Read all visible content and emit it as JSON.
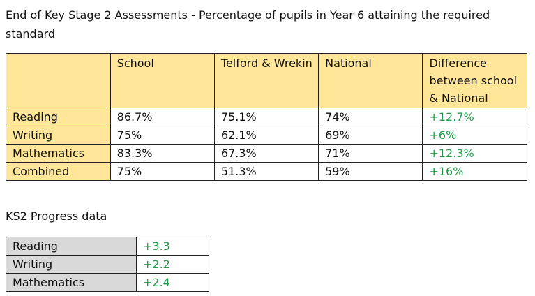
{
  "title": "End of Key Stage 2 Assessments - Percentage of pupils in Year 6 attaining the required standard",
  "attainment": {
    "headers": [
      "",
      "School",
      "Telford & Wrekin",
      "National",
      "Difference between school & National"
    ],
    "rows": [
      {
        "subject": "Reading",
        "school": "86.7%",
        "la": "75.1%",
        "national": "74%",
        "diff": "+12.7%"
      },
      {
        "subject": "Writing",
        "school": "75%",
        "la": "62.1%",
        "national": "69%",
        "diff": "+6%"
      },
      {
        "subject": "Mathematics",
        "school": "83.3%",
        "la": "67.3%",
        "national": "71%",
        "diff": "+12.3%"
      },
      {
        "subject": "Combined",
        "school": "75%",
        "la": "51.3%",
        "national": "59%",
        "diff": "+16%"
      }
    ]
  },
  "progress": {
    "title": "KS2 Progress data",
    "rows": [
      {
        "subject": "Reading",
        "score": "+3.3"
      },
      {
        "subject": "Writing",
        "score": "+2.2"
      },
      {
        "subject": "Mathematics",
        "score": "+2.4"
      }
    ]
  },
  "colors": {
    "header": "#FFE699",
    "positive": "#1f9b48",
    "label_grey": "#D9D9D9"
  }
}
